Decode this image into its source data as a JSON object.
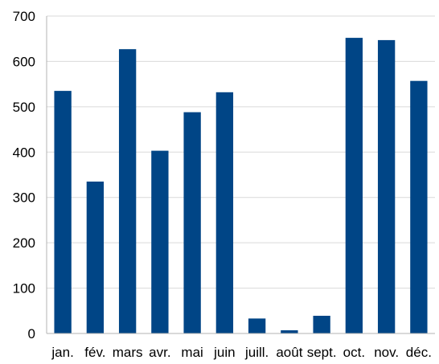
{
  "chart_data": {
    "type": "bar",
    "categories": [
      "jan.",
      "fév.",
      "mars",
      "avr.",
      "mai",
      "juin",
      "juill.",
      "août",
      "sept.",
      "oct.",
      "nov.",
      "déc."
    ],
    "values": [
      535,
      335,
      627,
      403,
      488,
      532,
      33,
      7,
      39,
      652,
      647,
      557
    ],
    "y_ticks": [
      "0",
      "100",
      "200",
      "300",
      "400",
      "500",
      "600",
      "700"
    ],
    "ylim": [
      0,
      700
    ],
    "grid": true,
    "legend": "none",
    "colors": {
      "bar": "#004586",
      "grid": "#d9d9d9",
      "axis": "#b3b3b3"
    }
  }
}
